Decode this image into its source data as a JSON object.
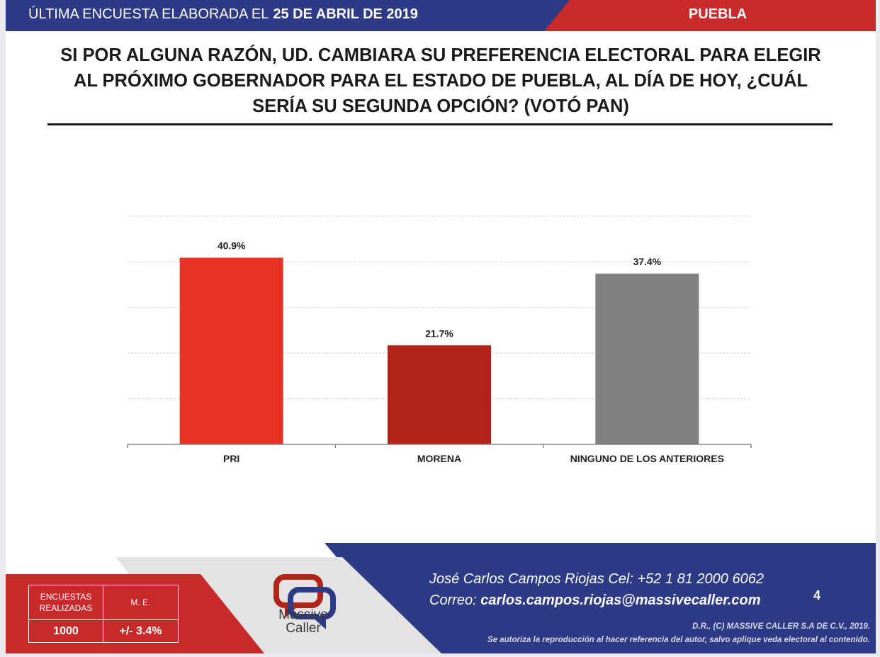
{
  "header": {
    "survey_label": "ÚLTIMA ENCUESTA ELABORADA EL",
    "survey_date": "25 DE ABRIL DE 2019",
    "state": "PUEBLA"
  },
  "question": "SI POR ALGUNA RAZÓN, UD. CAMBIARA SU PREFERENCIA ELECTORAL PARA ELEGIR AL PRÓXIMO GOBERNADOR PARA EL ESTADO DE PUEBLA, AL DÍA DE HOY, ¿CUÁL SERÍA SU SEGUNDA OPCIÓN? (VOTÓ PAN)",
  "chart_data": {
    "type": "bar",
    "categories": [
      "PRI",
      "MORENA",
      "NINGUNO DE LOS ANTERIORES"
    ],
    "values": [
      40.9,
      21.7,
      37.4
    ],
    "value_labels": [
      "40.9%",
      "21.7%",
      "37.4%"
    ],
    "colors": [
      "#e63323",
      "#b0241a",
      "#7f7f7f"
    ],
    "ylim": [
      0,
      50
    ],
    "grid": true,
    "title": "",
    "xlabel": "",
    "ylabel": ""
  },
  "footer": {
    "stats": {
      "surveys_header": "ENCUESTAS REALIZADAS",
      "error_header": "M. E.",
      "surveys_value": "1000",
      "error_value": "+/- 3.4%"
    },
    "logo": {
      "name_line1": "Massive",
      "name_line2": "Caller",
      "icon": "speech-bubbles-logo"
    },
    "contact_line1": "José Carlos Campos Riojas Cel: +52 1 81 2000 6062",
    "contact_label": "Correo:",
    "contact_email": "carlos.campos.riojas@massivecaller.com",
    "page_number": "4",
    "copyright": "D.R., (C) MASSIVE CALLER S.A DE C.V., 2019.",
    "notice": "Se autoriza la reproducción al hacer referencia del autor, salvo aplique veda electoral al contenido."
  },
  "colors": {
    "blue": "#2d3a85",
    "red": "#c82a2c"
  }
}
